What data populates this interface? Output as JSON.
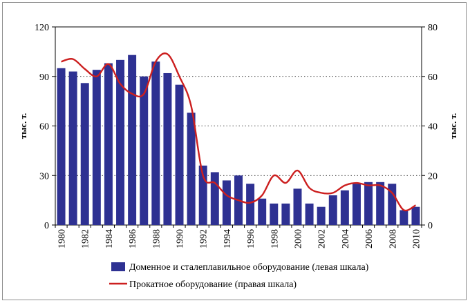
{
  "chart_data": {
    "type": "bar+line",
    "title": "",
    "x": [
      1980,
      1981,
      1982,
      1983,
      1984,
      1985,
      1986,
      1987,
      1988,
      1989,
      1990,
      1991,
      1992,
      1993,
      1994,
      1995,
      1996,
      1997,
      1998,
      1999,
      2000,
      2001,
      2002,
      2003,
      2004,
      2005,
      2006,
      2007,
      2008,
      2009,
      2010
    ],
    "x_tick_labels": [
      "1980",
      "1982",
      "1984",
      "1986",
      "1988",
      "1990",
      "1992",
      "1994",
      "1996",
      "1998",
      "2000",
      "2002",
      "2004",
      "2006",
      "2008",
      "2010"
    ],
    "series": [
      {
        "name": "Доменное и сталеплавильное оборудование (левая шкала)",
        "kind": "bar",
        "axis": "left",
        "color": "#2e3192",
        "values": [
          95,
          93,
          86,
          94,
          98,
          100,
          103,
          90,
          99,
          92,
          85,
          68,
          36,
          32,
          27,
          30,
          25,
          16,
          13,
          13,
          22,
          13,
          11,
          18,
          21,
          25,
          26,
          26,
          25,
          9,
          11
        ]
      },
      {
        "name": "Прокатное оборудование (правая шкала)",
        "kind": "line",
        "axis": "right",
        "color": "#cc1f1f",
        "values": [
          66,
          67,
          63,
          60,
          65,
          57,
          53,
          53,
          66,
          69,
          60,
          48,
          20,
          17,
          12,
          10,
          9,
          12,
          20,
          17,
          22,
          15,
          13,
          13,
          16,
          17,
          16,
          16,
          13,
          6,
          8
        ]
      }
    ],
    "y_left": {
      "label": "тыс. т.",
      "min": 0,
      "max": 120,
      "ticks": [
        0,
        30,
        60,
        90,
        120
      ]
    },
    "y_right": {
      "label": "тыс. т.",
      "min": 0,
      "max": 80,
      "ticks": [
        0,
        20,
        40,
        60,
        80
      ]
    },
    "grid": "horizontal dotted",
    "legend_position": "bottom"
  }
}
